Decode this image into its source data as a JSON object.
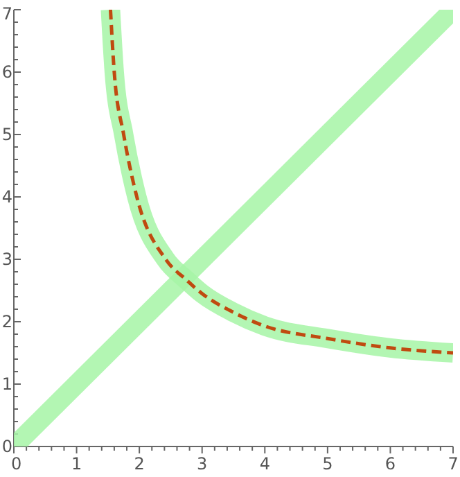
{
  "chart_data": {
    "type": "line",
    "xlim": [
      0,
      7
    ],
    "ylim": [
      0,
      7
    ],
    "xticks": [
      0,
      {
        "value": 0.2,
        "label": null
      },
      {
        "value": 0.4,
        "label": null
      },
      {
        "value": 0.6,
        "label": null
      },
      {
        "value": 0.8,
        "label": null
      },
      1,
      {
        "value": 1.2,
        "label": null
      },
      {
        "value": 1.4,
        "label": null
      },
      {
        "value": 1.6,
        "label": null
      },
      {
        "value": 1.8,
        "label": null
      },
      2,
      {
        "value": 2.2,
        "label": null
      },
      {
        "value": 2.4,
        "label": null
      },
      {
        "value": 2.6,
        "label": null
      },
      {
        "value": 2.8,
        "label": null
      },
      3,
      {
        "value": 3.2,
        "label": null
      },
      {
        "value": 3.4,
        "label": null
      },
      {
        "value": 3.6,
        "label": null
      },
      {
        "value": 3.8,
        "label": null
      },
      4,
      {
        "value": 4.2,
        "label": null
      },
      {
        "value": 4.4,
        "label": null
      },
      {
        "value": 4.6,
        "label": null
      },
      {
        "value": 4.8,
        "label": null
      },
      5,
      {
        "value": 5.2,
        "label": null
      },
      {
        "value": 5.4,
        "label": null
      },
      {
        "value": 5.6,
        "label": null
      },
      {
        "value": 5.8,
        "label": null
      },
      6,
      {
        "value": 6.2,
        "label": null
      },
      {
        "value": 6.4,
        "label": null
      },
      {
        "value": 6.6,
        "label": null
      },
      {
        "value": 6.8,
        "label": null
      },
      7
    ],
    "yticks": [
      0,
      {
        "value": 0.2,
        "label": null
      },
      {
        "value": 0.4,
        "label": null
      },
      {
        "value": 0.6,
        "label": null
      },
      {
        "value": 0.8,
        "label": null
      },
      1,
      {
        "value": 1.2,
        "label": null
      },
      {
        "value": 1.4,
        "label": null
      },
      {
        "value": 1.6,
        "label": null
      },
      {
        "value": 1.8,
        "label": null
      },
      2,
      {
        "value": 2.2,
        "label": null
      },
      {
        "value": 2.4,
        "label": null
      },
      {
        "value": 2.6,
        "label": null
      },
      {
        "value": 2.8,
        "label": null
      },
      3,
      {
        "value": 3.2,
        "label": null
      },
      {
        "value": 3.4,
        "label": null
      },
      {
        "value": 3.6,
        "label": null
      },
      {
        "value": 3.8,
        "label": null
      },
      4,
      {
        "value": 4.2,
        "label": null
      },
      {
        "value": 4.4,
        "label": null
      },
      {
        "value": 4.6,
        "label": null
      },
      {
        "value": 4.8,
        "label": null
      },
      5,
      {
        "value": 5.2,
        "label": null
      },
      {
        "value": 5.4,
        "label": null
      },
      {
        "value": 5.6,
        "label": null
      },
      {
        "value": 5.8,
        "label": null
      },
      6,
      {
        "value": 6.2,
        "label": null
      },
      {
        "value": 6.4,
        "label": null
      },
      {
        "value": 6.6,
        "label": null
      },
      {
        "value": 6.8,
        "label": null
      },
      7
    ],
    "grid": false,
    "series": [
      {
        "color": "#a6f5a6",
        "line_style": "solid",
        "x": [
          0,
          7
        ],
        "values": [
          0,
          7
        ]
      },
      {
        "color": "#a6f5a6",
        "line_style": "solid",
        "x": [
          1.54,
          1.6,
          1.75,
          1.96,
          2.42,
          2.75,
          3,
          3.5,
          4,
          5,
          6,
          7
        ],
        "values": [
          7,
          6,
          5,
          4,
          3,
          2.67,
          2.45,
          2.15,
          1.93,
          1.73,
          1.58,
          1.5
        ]
      },
      {
        "color": "#c04a10",
        "line_style": "dashed",
        "x": [
          1.54,
          1.6,
          1.75,
          1.96,
          2.42,
          2.75,
          3,
          3.5,
          4,
          5,
          6,
          7
        ],
        "values": [
          7,
          6,
          5,
          4,
          3,
          2.67,
          2.45,
          2.15,
          1.93,
          1.73,
          1.58,
          1.5
        ]
      }
    ]
  }
}
